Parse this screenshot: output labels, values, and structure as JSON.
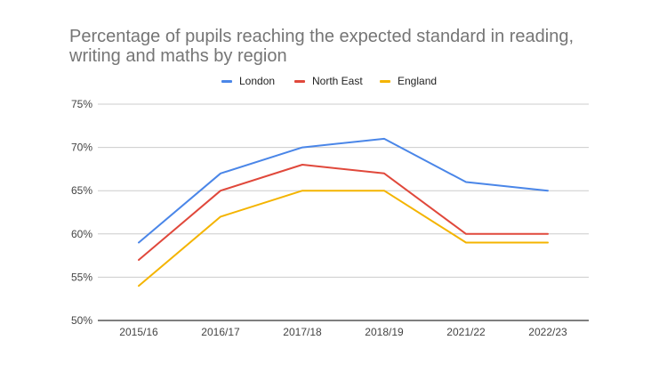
{
  "chart_data": {
    "type": "line",
    "title": "Percentage of pupils reaching the expected standard in reading, writing and maths by region",
    "categories": [
      "2015/16",
      "2016/17",
      "2017/18",
      "2018/19",
      "2021/22",
      "2022/23"
    ],
    "series": [
      {
        "name": "London",
        "color": "#4a86e8",
        "values": [
          59,
          67,
          70,
          71,
          66,
          65
        ]
      },
      {
        "name": "North East",
        "color": "#e0483b",
        "values": [
          57,
          65,
          68,
          67,
          60,
          60
        ]
      },
      {
        "name": "England",
        "color": "#f4b400",
        "values": [
          54,
          62,
          65,
          65,
          59,
          59
        ]
      }
    ],
    "ylim": [
      50,
      75
    ],
    "yticks": [
      50,
      55,
      60,
      65,
      70,
      75
    ],
    "ytick_labels": [
      "50%",
      "55%",
      "60%",
      "65%",
      "70%",
      "75%"
    ],
    "legend_position": "top",
    "grid": true,
    "xlabel": "",
    "ylabel": ""
  }
}
